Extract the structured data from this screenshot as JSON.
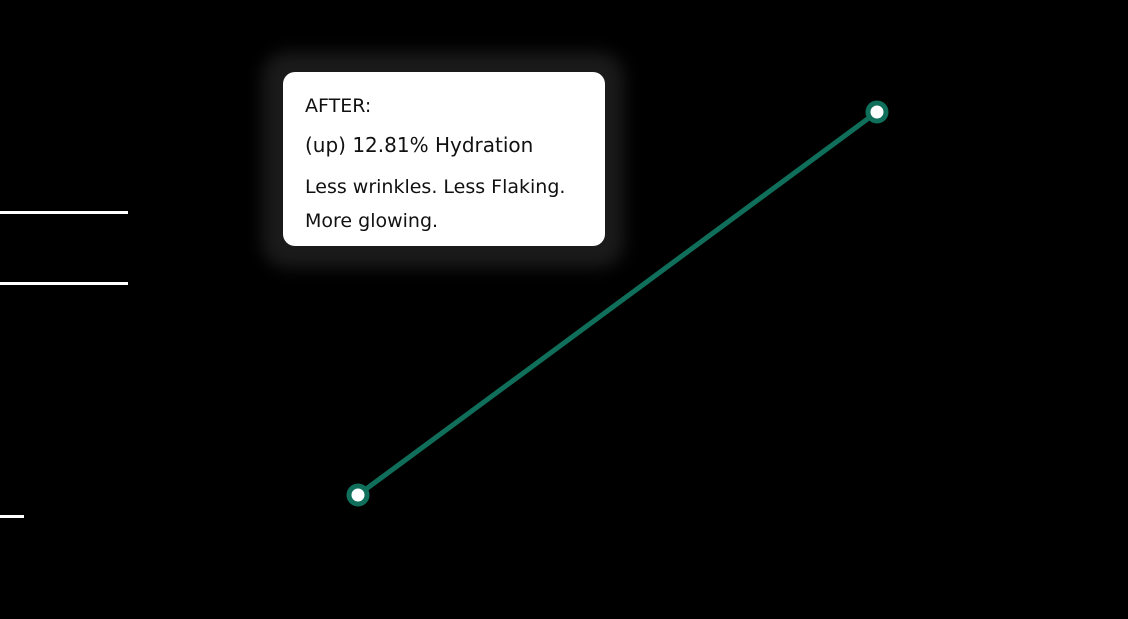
{
  "colors": {
    "background": "#000000",
    "line": "#0f6f5a",
    "marker_fill": "#ffffff",
    "tooltip_bg": "#ffffff",
    "text": "#111111"
  },
  "tooltip": {
    "heading": "AFTER:",
    "metric": "(up) 12.81% Hydration",
    "note": "Less wrinkles. Less Flaking.\nMore glowing."
  },
  "chart_data": {
    "type": "line",
    "title": "",
    "xlabel": "",
    "ylabel": "",
    "grid": false,
    "legend": "none",
    "series": [
      {
        "points": [
          {
            "x": 0,
            "y": 0
          },
          {
            "x": 1,
            "y": 12.81
          }
        ]
      }
    ],
    "xlim": [
      0,
      1
    ],
    "ylim": [
      0,
      12.81
    ]
  }
}
